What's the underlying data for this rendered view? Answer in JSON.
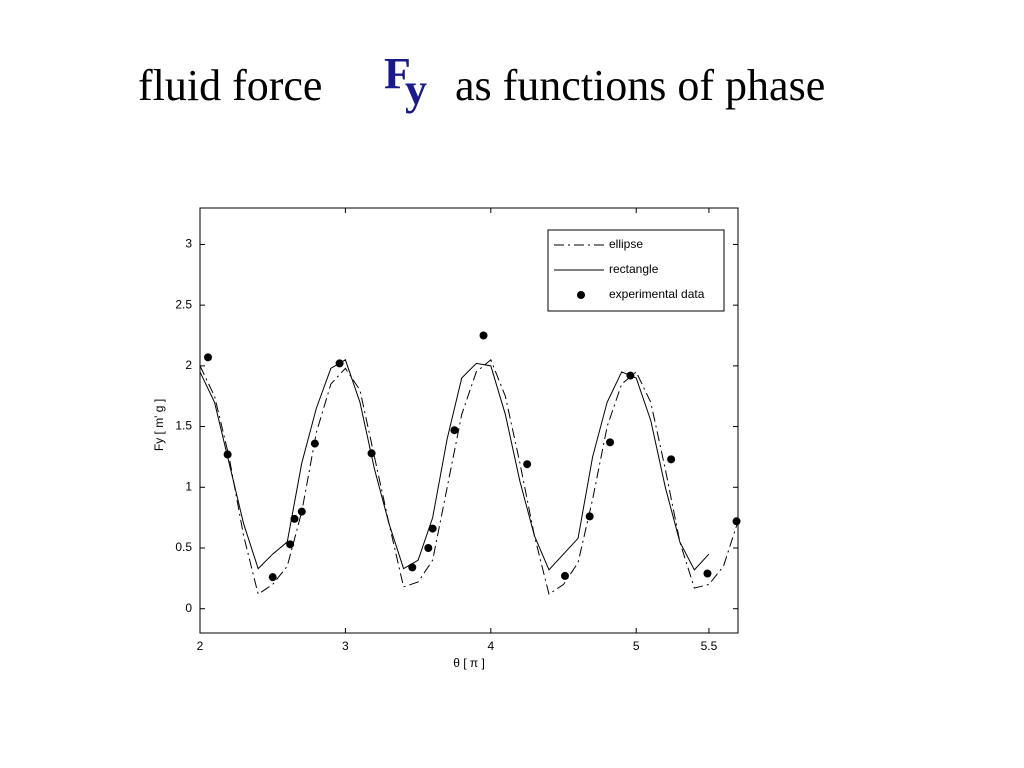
{
  "chart_data": {
    "type": "line",
    "title": "fluid force",
    "title_symbol": "F",
    "title_subscript": "y",
    "title_suffix": "as functions of phase",
    "title_symbol_color": "#1a1a8c",
    "xlabel": "θ [ π ]",
    "ylabel": "Fy [ m' g ]",
    "xlim": [
      2,
      5.7
    ],
    "ylim": [
      -0.2,
      3.3
    ],
    "xticks": [
      2,
      3,
      4,
      5,
      5.5
    ],
    "yticks": [
      0,
      0.5,
      1,
      1.5,
      2,
      2.5,
      3
    ],
    "legend": "upper right",
    "grid": false,
    "series": [
      {
        "name": "ellipse",
        "type": "line",
        "style": "dashdot",
        "color": "#000000",
        "x": [
          2.0,
          2.1,
          2.2,
          2.3,
          2.4,
          2.5,
          2.6,
          2.7,
          2.8,
          2.9,
          3.0,
          3.1,
          3.2,
          3.3,
          3.4,
          3.5,
          3.6,
          3.7,
          3.8,
          3.9,
          4.0,
          4.1,
          4.2,
          4.3,
          4.4,
          4.5,
          4.6,
          4.7,
          4.8,
          4.9,
          5.0,
          5.1,
          5.2,
          5.3,
          5.4,
          5.5,
          5.6,
          5.7
        ],
        "values": [
          2.0,
          1.75,
          1.25,
          0.6,
          0.12,
          0.2,
          0.35,
          0.8,
          1.45,
          1.85,
          1.98,
          1.8,
          1.25,
          0.7,
          0.18,
          0.22,
          0.4,
          1.0,
          1.6,
          1.95,
          2.05,
          1.75,
          1.2,
          0.6,
          0.12,
          0.2,
          0.38,
          0.9,
          1.5,
          1.85,
          1.95,
          1.7,
          1.15,
          0.55,
          0.17,
          0.2,
          0.35,
          0.72
        ]
      },
      {
        "name": "rectangle",
        "type": "line",
        "style": "solid",
        "color": "#000000",
        "x": [
          2.0,
          2.1,
          2.2,
          2.3,
          2.4,
          2.5,
          2.6,
          2.7,
          2.8,
          2.9,
          3.0,
          3.1,
          3.2,
          3.3,
          3.4,
          3.5,
          3.6,
          3.7,
          3.8,
          3.9,
          4.0,
          4.1,
          4.2,
          4.3,
          4.4,
          4.5,
          4.6,
          4.7,
          4.8,
          4.9,
          5.0,
          5.1,
          5.2,
          5.3,
          5.4,
          5.5,
          5.6,
          5.7
        ],
        "values": [
          1.95,
          1.7,
          1.2,
          0.7,
          0.33,
          0.45,
          0.55,
          1.2,
          1.65,
          1.98,
          2.05,
          1.7,
          1.15,
          0.7,
          0.33,
          0.4,
          0.75,
          1.4,
          1.9,
          2.02,
          2.0,
          1.6,
          1.05,
          0.6,
          0.32,
          0.45,
          0.58,
          1.25,
          1.7,
          1.95,
          1.9,
          1.55,
          1.0,
          0.55,
          0.32,
          0.45,
          null,
          null
        ]
      },
      {
        "name": "experimental data",
        "type": "scatter",
        "color": "#000000",
        "x": [
          2.055,
          2.19,
          2.5,
          2.62,
          2.65,
          2.7,
          2.79,
          2.96,
          3.18,
          3.46,
          3.57,
          3.6,
          3.75,
          3.95,
          4.25,
          4.51,
          4.68,
          4.82,
          4.96,
          5.24,
          5.49,
          5.69
        ],
        "values": [
          2.07,
          1.27,
          0.26,
          0.53,
          0.74,
          0.8,
          1.36,
          2.02,
          1.28,
          0.34,
          0.5,
          0.66,
          1.47,
          2.25,
          1.19,
          0.27,
          0.76,
          1.37,
          1.92,
          1.23,
          0.29,
          0.72
        ]
      }
    ]
  }
}
